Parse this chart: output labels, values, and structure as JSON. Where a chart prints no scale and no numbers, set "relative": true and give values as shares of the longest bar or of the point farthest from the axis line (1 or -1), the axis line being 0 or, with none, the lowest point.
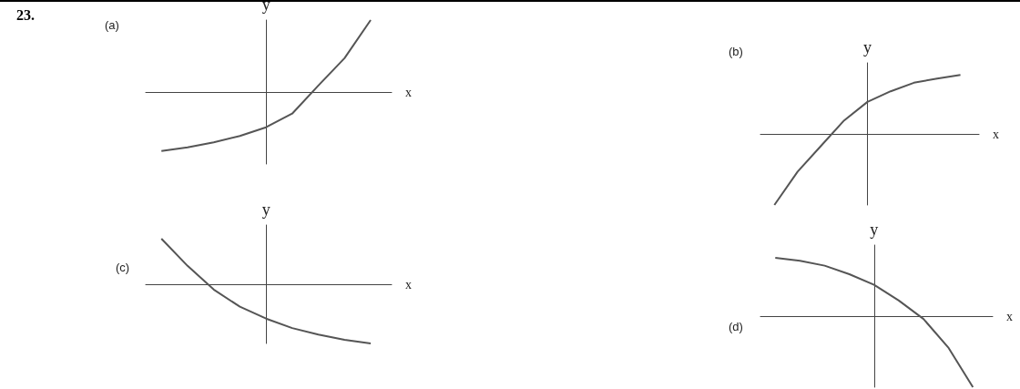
{
  "chart_data": [
    {
      "type": "line",
      "title": "(a)",
      "xlabel": "x",
      "ylabel": "y",
      "annotations": [
        "23."
      ],
      "relative": true,
      "grid": false,
      "marker": "none",
      "categories": [
        null,
        null,
        null,
        null,
        null,
        null,
        null,
        null,
        null
      ],
      "series": [
        {
          "color": "#555555",
          "values": [
            -0.82,
            -0.77,
            -0.7,
            -0.61,
            -0.49,
            -0.3,
            0.09,
            0.47,
            1
          ]
        }
      ]
    },
    {
      "type": "line",
      "title": "(b)",
      "xlabel": "x",
      "ylabel": "y",
      "relative": true,
      "grid": false,
      "marker": "none",
      "categories": [
        null,
        null,
        null,
        null,
        null,
        null,
        null,
        null,
        null
      ],
      "series": [
        {
          "color": "#555555",
          "values": [
            -1,
            -0.53,
            -0.17,
            0.19,
            0.45,
            0.6,
            0.72,
            0.78,
            0.83
          ]
        }
      ]
    },
    {
      "type": "line",
      "title": "(c)",
      "xlabel": "x",
      "ylabel": "y",
      "relative": true,
      "grid": false,
      "marker": "none",
      "categories": [
        null,
        null,
        null,
        null,
        null,
        null,
        null,
        null,
        null
      ],
      "series": [
        {
          "color": "#555555",
          "values": [
            0.77,
            0.31,
            -0.09,
            -0.38,
            -0.58,
            -0.74,
            -0.85,
            -0.94,
            -1
          ]
        }
      ]
    },
    {
      "type": "line",
      "title": "(d)",
      "xlabel": "x",
      "ylabel": "y",
      "relative": true,
      "grid": false,
      "marker": "none",
      "categories": [
        null,
        null,
        null,
        null,
        null,
        null,
        null,
        null,
        null
      ],
      "series": [
        {
          "color": "#555555",
          "values": [
            0.82,
            0.78,
            0.71,
            0.59,
            0.44,
            0.22,
            -0.04,
            -0.44,
            -1
          ]
        }
      ]
    }
  ]
}
